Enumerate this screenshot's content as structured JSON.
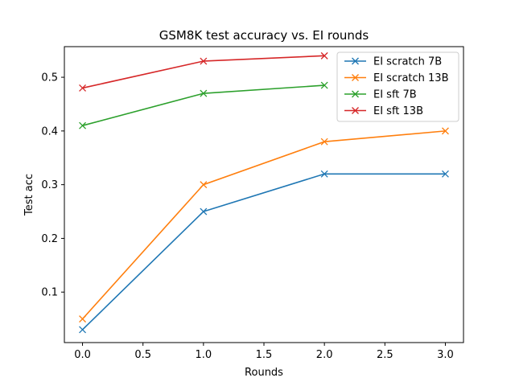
{
  "chart_data": {
    "type": "line",
    "title": "GSM8K test accuracy vs. EI rounds",
    "xlabel": "Rounds",
    "ylabel": "Test acc",
    "xlim": [
      -0.15,
      3.15
    ],
    "ylim": [
      0.006,
      0.557
    ],
    "xticks": [
      0.0,
      0.5,
      1.0,
      1.5,
      2.0,
      2.5,
      3.0
    ],
    "xtick_labels": [
      "0.0",
      "0.5",
      "1.0",
      "1.5",
      "2.0",
      "2.5",
      "3.0"
    ],
    "yticks": [
      0.1,
      0.2,
      0.3,
      0.4,
      0.5
    ],
    "ytick_labels": [
      "0.1",
      "0.2",
      "0.3",
      "0.4",
      "0.5"
    ],
    "grid": false,
    "legend_position": "top-right",
    "marker": "x",
    "series": [
      {
        "name": "EI scratch 7B",
        "color": "#1f77b4",
        "x": [
          0,
          1,
          2,
          3
        ],
        "y": [
          0.03,
          0.25,
          0.32,
          0.32
        ]
      },
      {
        "name": "EI scratch 13B",
        "color": "#ff7f0e",
        "x": [
          0,
          1,
          2,
          3
        ],
        "y": [
          0.05,
          0.3,
          0.38,
          0.4
        ]
      },
      {
        "name": "EI sft 7B",
        "color": "#2ca02c",
        "x": [
          0,
          1,
          2
        ],
        "y": [
          0.41,
          0.47,
          0.485
        ]
      },
      {
        "name": "EI sft 13B",
        "color": "#d62728",
        "x": [
          0,
          1,
          2
        ],
        "y": [
          0.48,
          0.53,
          0.54
        ]
      }
    ]
  }
}
